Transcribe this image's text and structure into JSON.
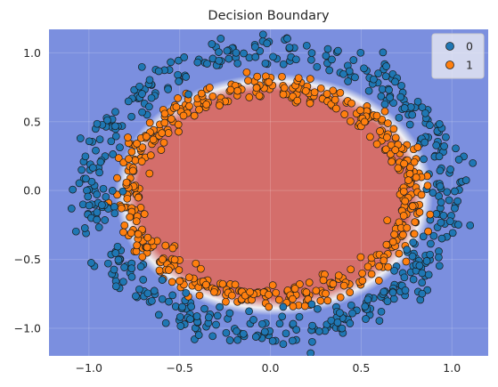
{
  "chart_data": {
    "type": "scatter",
    "title": "Decision Boundary",
    "xlabel": "",
    "ylabel": "",
    "xlim": [
      -1.22,
      1.2
    ],
    "ylim": [
      -1.2,
      1.17
    ],
    "xticks": [
      -1.0,
      -0.5,
      0.0,
      0.5,
      1.0
    ],
    "xtick_labels": [
      "−1.0",
      "−0.5",
      "0.0",
      "0.5",
      "1.0"
    ],
    "yticks": [
      -1.0,
      -0.5,
      0.0,
      0.5,
      1.0
    ],
    "ytick_labels": [
      "−1.0",
      "−0.5",
      "0.0",
      "0.5",
      "1.0"
    ],
    "grid": true,
    "legend_position": "top-right",
    "background_regions": {
      "class_0_color": "#7b8fdf",
      "class_1_color": "#d46e6b",
      "boundary_color": "#f1f1f3",
      "class_1_region": {
        "shape": "ellipse",
        "center": [
          0.02,
          -0.03
        ],
        "radius_x": 0.82,
        "radius_y": 0.82
      }
    },
    "series": [
      {
        "name": "0",
        "color": "#1f77b4",
        "description_shape": "ring",
        "center": [
          0.0,
          0.0
        ],
        "radius_x": 0.98,
        "radius_y": 1.02,
        "radial_noise": 0.06,
        "count": 500
      },
      {
        "name": "1",
        "color": "#ff7f0e",
        "description_shape": "ring",
        "center": [
          0.0,
          -0.02
        ],
        "radius_x": 0.78,
        "radius_y": 0.77,
        "radial_noise": 0.06,
        "count": 500
      }
    ]
  }
}
